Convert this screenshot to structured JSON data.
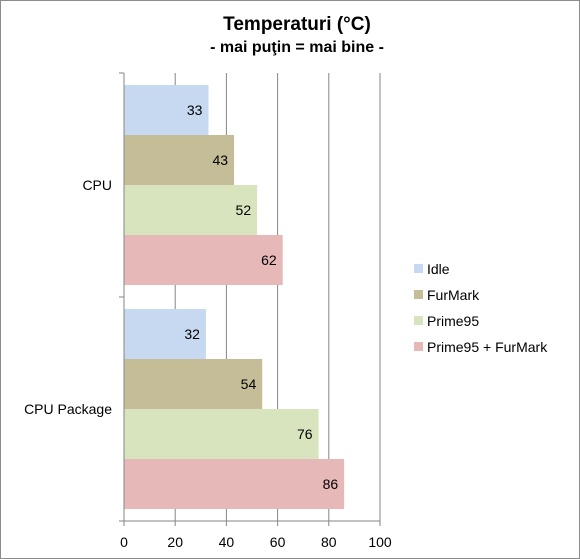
{
  "chart_data": {
    "type": "bar",
    "orientation": "horizontal",
    "title": "Temperaturi (°C)",
    "subtitle": "- mai puţin = mai bine -",
    "categories": [
      "CPU",
      "CPU Package"
    ],
    "series": [
      {
        "name": "Idle",
        "values": [
          33,
          32
        ],
        "color": "#c6d9f1"
      },
      {
        "name": "FurMark",
        "values": [
          43,
          54
        ],
        "color": "#c4bd97"
      },
      {
        "name": "Prime95",
        "values": [
          52,
          76
        ],
        "color": "#d7e4bd"
      },
      {
        "name": "Prime95 + FurMark",
        "values": [
          62,
          86
        ],
        "color": "#e6b9b8"
      }
    ],
    "xlim": [
      0,
      100
    ],
    "xticks": [
      0,
      20,
      40,
      60,
      80,
      100
    ],
    "grid": true,
    "legend": "right"
  }
}
